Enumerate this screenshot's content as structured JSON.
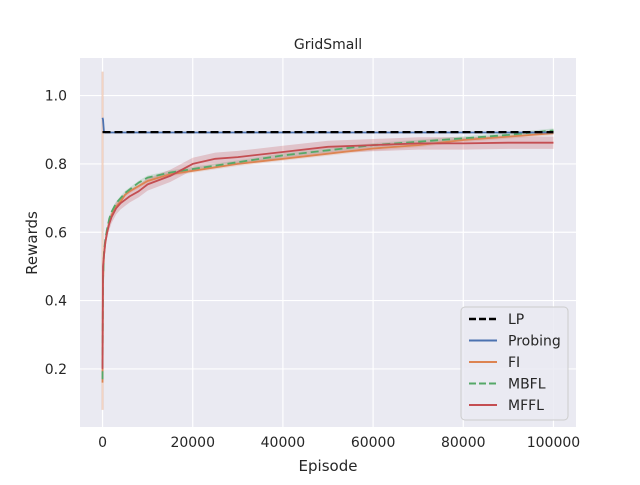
{
  "chart_data": {
    "type": "line",
    "title": "GridSmall",
    "xlabel": "Episode",
    "ylabel": "Rewards",
    "xlim": [
      -5000,
      105000
    ],
    "ylim": [
      0.03,
      1.11
    ],
    "xticks": [
      0,
      20000,
      40000,
      60000,
      80000,
      100000
    ],
    "xtick_labels": [
      "0",
      "20000",
      "40000",
      "60000",
      "80000",
      "100000"
    ],
    "yticks": [
      0.2,
      0.4,
      0.6,
      0.8,
      1.0
    ],
    "ytick_labels": [
      "0.2",
      "0.4",
      "0.6",
      "0.8",
      "1.0"
    ],
    "grid": true,
    "legend_position": "lower-right",
    "colors": {
      "background": "#eaeaf2",
      "grid": "#ffffff",
      "LP": "#000000",
      "Probing": "#4c72b0",
      "FI": "#dd8452",
      "MBFL": "#55a868",
      "MFFL": "#c44e52"
    },
    "series": [
      {
        "name": "LP",
        "style": "dashed",
        "x": [
          0,
          100000
        ],
        "y": [
          0.893,
          0.893
        ]
      },
      {
        "name": "Probing",
        "style": "solid",
        "x": [
          0,
          100,
          300,
          600,
          100000
        ],
        "y": [
          0.935,
          0.93,
          0.895,
          0.892,
          0.892
        ]
      },
      {
        "name": "FI",
        "style": "solid",
        "x": [
          0,
          100,
          300,
          600,
          1000,
          1500,
          2000,
          3000,
          4000,
          5000,
          6000,
          8000,
          10000,
          15000,
          20000,
          25000,
          30000,
          40000,
          50000,
          60000,
          70000,
          80000,
          90000,
          100000
        ],
        "y": [
          0.16,
          0.45,
          0.53,
          0.57,
          0.6,
          0.63,
          0.65,
          0.675,
          0.69,
          0.71,
          0.72,
          0.735,
          0.75,
          0.77,
          0.78,
          0.79,
          0.8,
          0.815,
          0.83,
          0.845,
          0.855,
          0.87,
          0.88,
          0.89
        ]
      },
      {
        "name": "MBFL",
        "style": "dashed",
        "x": [
          0,
          100,
          300,
          600,
          1000,
          1500,
          2000,
          3000,
          4000,
          5000,
          6000,
          8000,
          10000,
          15000,
          20000,
          25000,
          30000,
          40000,
          50000,
          60000,
          70000,
          80000,
          90000,
          100000
        ],
        "y": [
          0.17,
          0.46,
          0.54,
          0.58,
          0.61,
          0.64,
          0.66,
          0.685,
          0.7,
          0.715,
          0.725,
          0.745,
          0.76,
          0.775,
          0.785,
          0.795,
          0.805,
          0.825,
          0.84,
          0.855,
          0.865,
          0.875,
          0.885,
          0.898
        ]
      },
      {
        "name": "MFFL",
        "style": "solid",
        "x": [
          0,
          100,
          300,
          600,
          1000,
          1500,
          2000,
          3000,
          4000,
          5000,
          6000,
          8000,
          10000,
          15000,
          20000,
          25000,
          30000,
          40000,
          50000,
          60000,
          70000,
          80000,
          90000,
          100000
        ],
        "y": [
          0.2,
          0.5,
          0.53,
          0.57,
          0.6,
          0.625,
          0.645,
          0.67,
          0.685,
          0.695,
          0.705,
          0.72,
          0.74,
          0.765,
          0.8,
          0.815,
          0.82,
          0.835,
          0.85,
          0.855,
          0.86,
          0.86,
          0.862,
          0.862
        ]
      }
    ]
  }
}
